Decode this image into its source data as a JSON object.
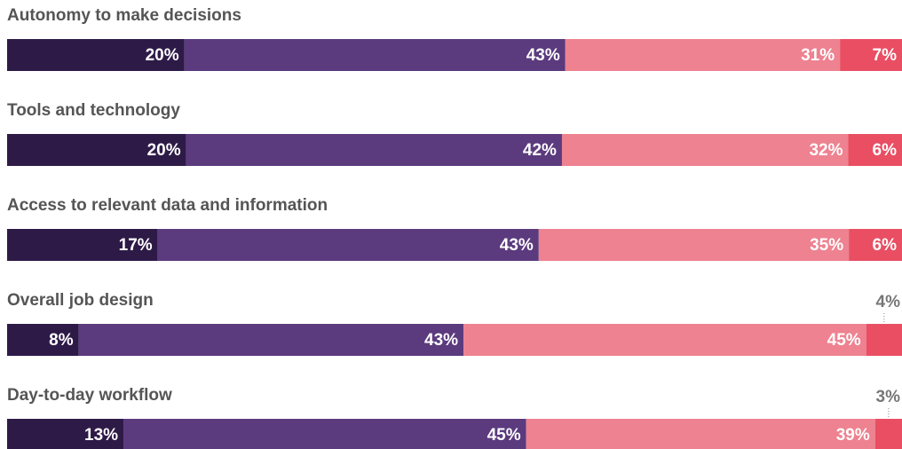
{
  "chart_data": {
    "type": "stacked-bar-horizontal",
    "categories": [
      "Autonomy to make decisions",
      "Tools and technology",
      "Access to relevant data and information",
      "Overall job design",
      "Day-to-day workflow"
    ],
    "series": [
      {
        "color": "#2e1a47",
        "values": [
          20,
          20,
          17,
          8,
          13
        ],
        "value_labels": [
          "20%",
          "20%",
          "17%",
          "8%",
          "13%"
        ]
      },
      {
        "color": "#5b3a7e",
        "values": [
          43,
          42,
          43,
          43,
          45
        ],
        "value_labels": [
          "43%",
          "42%",
          "43%",
          "43%",
          "45%"
        ]
      },
      {
        "color": "#ee8290",
        "values": [
          31,
          32,
          35,
          45,
          39
        ],
        "value_labels": [
          "31%",
          "32%",
          "35%",
          "45%",
          "39%"
        ]
      },
      {
        "color": "#e94e63",
        "values": [
          7,
          6,
          6,
          4,
          3
        ],
        "value_labels": [
          "7%",
          "6%",
          "6%",
          "4%",
          "3%"
        ]
      }
    ]
  }
}
